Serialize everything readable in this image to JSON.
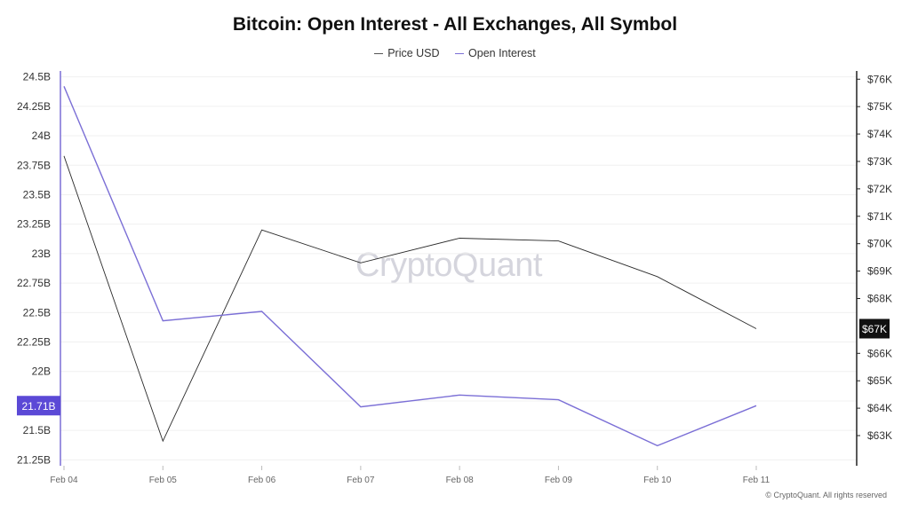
{
  "chart_data": {
    "type": "line",
    "title": "Bitcoin: Open Interest - All Exchanges, All Symbol",
    "x": [
      "Feb 04",
      "Feb 05",
      "Feb 06",
      "Feb 07",
      "Feb 08",
      "Feb 09",
      "Feb 10",
      "Feb 11"
    ],
    "series": [
      {
        "name": "Price USD",
        "axis": "right",
        "color": "#2b2b2b",
        "values": [
          73.2,
          62.8,
          70.5,
          69.3,
          70.2,
          70.1,
          68.8,
          66.9
        ]
      },
      {
        "name": "Open Interest",
        "axis": "left",
        "color": "#7b6fd6",
        "values": [
          24.42,
          22.43,
          22.51,
          21.7,
          21.8,
          21.76,
          21.37,
          21.71
        ]
      }
    ],
    "y_left": {
      "ticks": [
        "24.5B",
        "24.25B",
        "24B",
        "23.75B",
        "23.5B",
        "23.25B",
        "23B",
        "22.75B",
        "22.5B",
        "22.25B",
        "22B",
        "21.75B",
        "21.5B",
        "21.25B"
      ],
      "tick_values": [
        24.5,
        24.25,
        24.0,
        23.75,
        23.5,
        23.25,
        23.0,
        22.75,
        22.5,
        22.25,
        22.0,
        21.75,
        21.5,
        21.25
      ],
      "range": [
        21.2,
        24.55
      ],
      "unit_suffix": "B"
    },
    "y_right": {
      "ticks": [
        "$76K",
        "$75K",
        "$74K",
        "$73K",
        "$72K",
        "$71K",
        "$70K",
        "$69K",
        "$68K",
        "$66K",
        "$65K",
        "$64K",
        "$63K"
      ],
      "tick_values": [
        76,
        75,
        74,
        73,
        72,
        71,
        70,
        69,
        68,
        66,
        65,
        64,
        63
      ],
      "range": [
        61.9,
        76.3
      ]
    },
    "current_value_labels": {
      "left": "21.71B",
      "right": "$67K",
      "left_color": "#5b49d6",
      "right_color": "#111111"
    },
    "grid": true,
    "legend_position": "top-center"
  },
  "watermark": "CryptoQuant",
  "footer": "© CryptoQuant. All rights reserved"
}
